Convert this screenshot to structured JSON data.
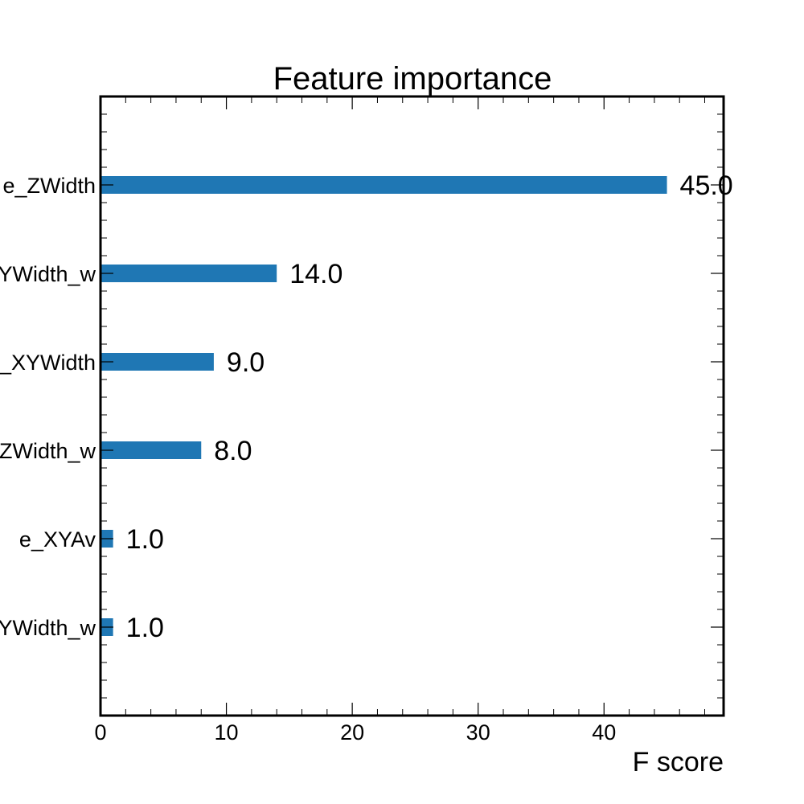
{
  "chart_data": {
    "type": "bar",
    "orientation": "horizontal",
    "title": "Feature importance",
    "xlabel": "F score",
    "ylabel": "",
    "xlim": [
      0,
      49.5
    ],
    "xticks": [
      0,
      10,
      20,
      30,
      40
    ],
    "categories": [
      "e_ZWidth",
      "YWidth_w",
      "_XYWidth",
      "ZWidth_w",
      "e_XYAv",
      "YWidth_w"
    ],
    "values": [
      45,
      14,
      9,
      8,
      1,
      1
    ],
    "data_labels": [
      "45.0",
      "14.0",
      "9.0",
      "8.0",
      "1.0",
      "1.0"
    ],
    "bar_color": "#1f77b4",
    "grid": false,
    "legend": "none"
  }
}
